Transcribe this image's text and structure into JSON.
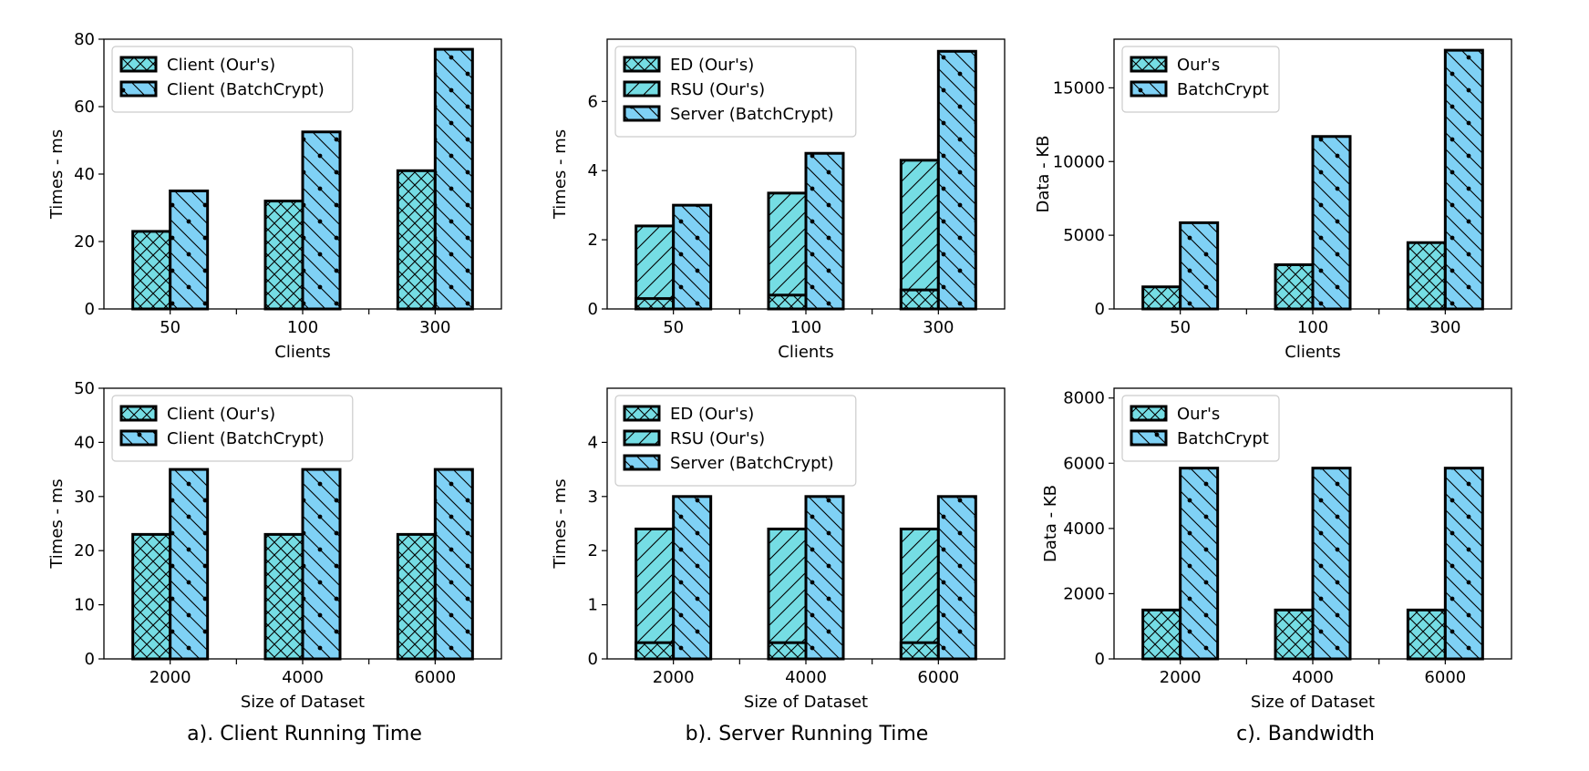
{
  "colors": {
    "ours": "#75DDE4",
    "batch": "#7FD1F5",
    "stroke": "#000000"
  },
  "captions": [
    "a). Client Running Time",
    "b). Server Running Time",
    "c). Bandwidth"
  ],
  "chart_data": [
    {
      "type": "bar",
      "id": "a-top",
      "categories": [
        "50",
        "100",
        "300"
      ],
      "xlabel": "Clients",
      "ylabel": "Times - ms",
      "ylim": [
        0,
        80
      ],
      "yticks": [
        0,
        20,
        40,
        60,
        80
      ],
      "grid": false,
      "legend_position": "top-left",
      "series": [
        {
          "name": "Client (Our's)",
          "values": [
            23,
            32,
            41
          ],
          "hatch": "cross",
          "color": "ours"
        },
        {
          "name": "Client (BatchCrypt)",
          "values": [
            35,
            52.5,
            77
          ],
          "hatch": "diag-dots",
          "color": "batch"
        }
      ]
    },
    {
      "type": "bar",
      "id": "b-top",
      "categories": [
        "50",
        "100",
        "300"
      ],
      "xlabel": "Clients",
      "ylabel": "Times - ms",
      "ylim": [
        0,
        7.8
      ],
      "yticks": [
        0,
        2,
        4,
        6
      ],
      "grid": false,
      "legend_position": "top-left",
      "series": [
        {
          "name": "ED (Our's)",
          "values": [
            0.3,
            0.4,
            0.55
          ],
          "hatch": "cross",
          "color": "ours",
          "group": 0
        },
        {
          "name": "RSU (Our's)",
          "values": [
            2.4,
            3.35,
            4.3
          ],
          "hatch": "slash",
          "color": "ours",
          "group": 0
        },
        {
          "name": "Server (BatchCrypt)",
          "values": [
            3.0,
            4.5,
            7.45
          ],
          "hatch": "diag-dots",
          "color": "batch",
          "group": 1
        }
      ]
    },
    {
      "type": "bar",
      "id": "c-top",
      "categories": [
        "50",
        "100",
        "300"
      ],
      "xlabel": "Clients",
      "ylabel": "Data - KB",
      "ylim": [
        0,
        18300
      ],
      "yticks": [
        0,
        5000,
        10000,
        15000
      ],
      "grid": false,
      "legend_position": "top-left",
      "series": [
        {
          "name": "Our's",
          "values": [
            1500,
            3000,
            4500
          ],
          "hatch": "cross",
          "color": "ours"
        },
        {
          "name": "BatchCrypt",
          "values": [
            5850,
            11700,
            17550
          ],
          "hatch": "diag-dots",
          "color": "batch"
        }
      ]
    },
    {
      "type": "bar",
      "id": "a-bottom",
      "categories": [
        "2000",
        "4000",
        "6000"
      ],
      "xlabel": "Size of Dataset",
      "ylabel": "Times - ms",
      "ylim": [
        0,
        50
      ],
      "yticks": [
        0,
        10,
        20,
        30,
        40,
        50
      ],
      "grid": false,
      "legend_position": "top-left",
      "series": [
        {
          "name": "Client (Our's)",
          "values": [
            23,
            23,
            23
          ],
          "hatch": "cross",
          "color": "ours"
        },
        {
          "name": "Client (BatchCrypt)",
          "values": [
            35,
            35,
            35
          ],
          "hatch": "diag-dots",
          "color": "batch"
        }
      ]
    },
    {
      "type": "bar",
      "id": "b-bottom",
      "categories": [
        "2000",
        "4000",
        "6000"
      ],
      "xlabel": "Size of Dataset",
      "ylabel": "Times - ms",
      "ylim": [
        0,
        5
      ],
      "yticks": [
        0,
        1,
        2,
        3,
        4
      ],
      "grid": false,
      "legend_position": "top-left",
      "series": [
        {
          "name": "ED (Our's)",
          "values": [
            0.3,
            0.3,
            0.3
          ],
          "hatch": "cross",
          "color": "ours",
          "group": 0
        },
        {
          "name": "RSU (Our's)",
          "values": [
            2.4,
            2.4,
            2.4
          ],
          "hatch": "slash",
          "color": "ours",
          "group": 0
        },
        {
          "name": "Server (BatchCrypt)",
          "values": [
            3.0,
            3.0,
            3.0
          ],
          "hatch": "diag-dots",
          "color": "batch",
          "group": 1
        }
      ]
    },
    {
      "type": "bar",
      "id": "c-bottom",
      "categories": [
        "2000",
        "4000",
        "6000"
      ],
      "xlabel": "Size of Dataset",
      "ylabel": "Data - KB",
      "ylim": [
        0,
        8300
      ],
      "yticks": [
        0,
        2000,
        4000,
        6000,
        8000
      ],
      "grid": false,
      "legend_position": "top-left",
      "series": [
        {
          "name": "Our's",
          "values": [
            1500,
            1500,
            1500
          ],
          "hatch": "cross",
          "color": "ours"
        },
        {
          "name": "BatchCrypt",
          "values": [
            5850,
            5850,
            5850
          ],
          "hatch": "diag-dots",
          "color": "batch"
        }
      ]
    }
  ]
}
